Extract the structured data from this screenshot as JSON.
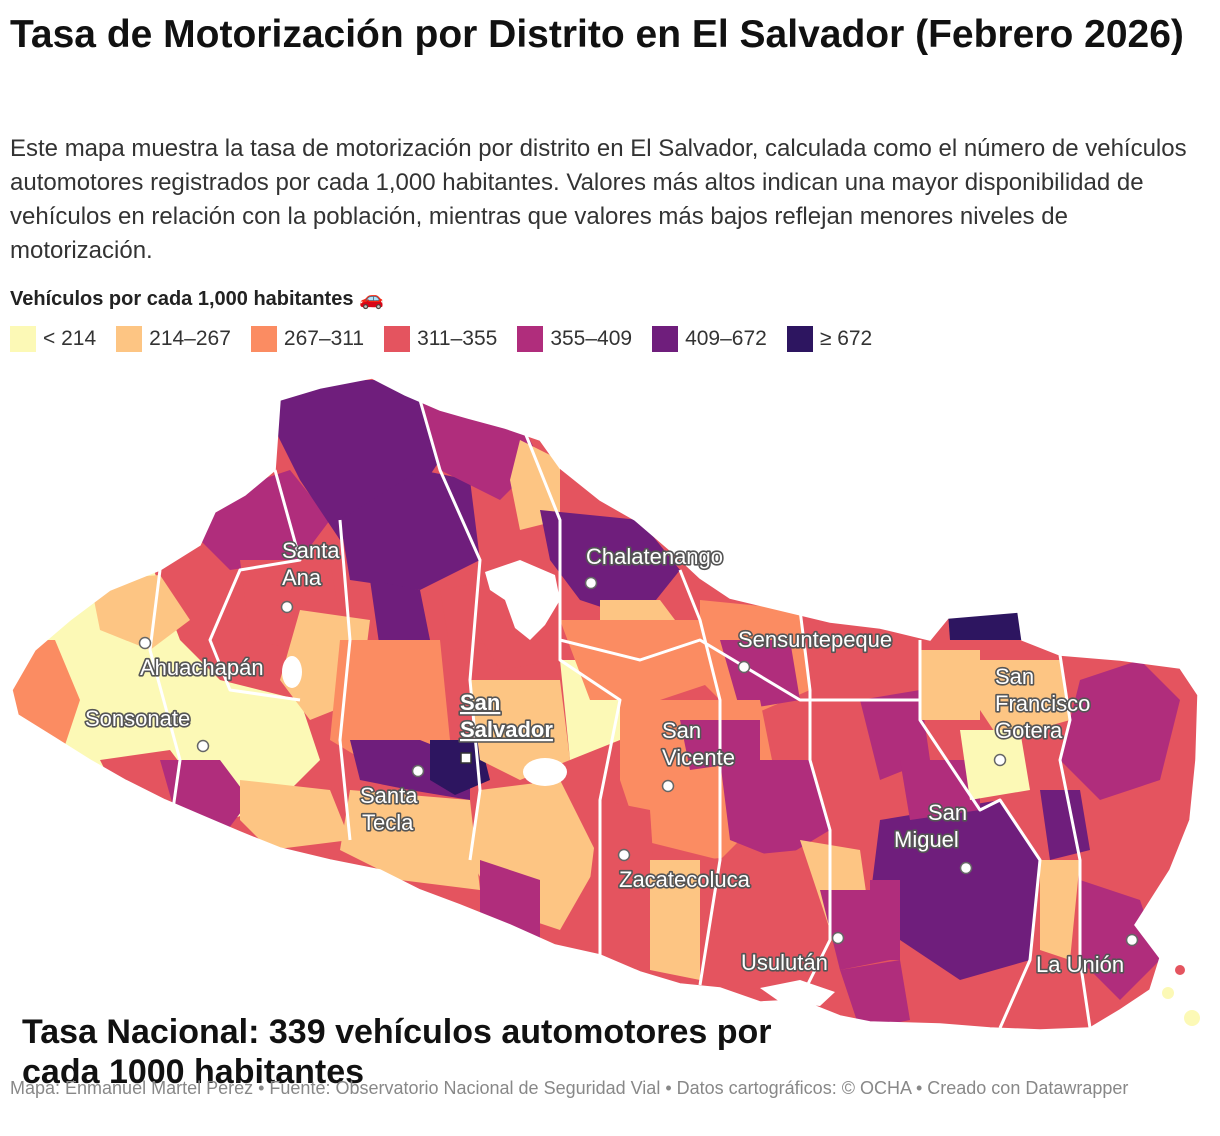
{
  "header": {
    "title": "Tasa de Motorización por Distrito en El Salvador (Febrero 2026)",
    "description": "Este mapa muestra la tasa de motorización por distrito en El Salvador, calculada como el número de vehículos automotores registrados por cada 1,000 habitantes. Valores más altos indican una mayor disponibilidad de vehículos en relación con la población, mientras que valores más bajos reflejan menores niveles de motorización."
  },
  "legend": {
    "title": "Vehículos por cada 1,000 habitantes 🚗",
    "items": [
      {
        "label": "< 214",
        "color": "#fcf9b6"
      },
      {
        "label": "214–267",
        "color": "#fdc583"
      },
      {
        "label": "267–311",
        "color": "#fb8c62"
      },
      {
        "label": "311–355",
        "color": "#e4545f"
      },
      {
        "label": "355–409",
        "color": "#b02d7c"
      },
      {
        "label": "409–672",
        "color": "#6f1e7c"
      },
      {
        "label": "≥ 672",
        "color": "#2d1560"
      }
    ]
  },
  "map": {
    "cities": [
      {
        "name": "Santa Ana",
        "lines": [
          "Santa",
          "Ana"
        ]
      },
      {
        "name": "Ahuachapán",
        "lines": [
          "Ahuachapán"
        ]
      },
      {
        "name": "Sonsonate",
        "lines": [
          "Sonsonate"
        ]
      },
      {
        "name": "Santa Tecla",
        "lines": [
          "Santa",
          "Tecla"
        ]
      },
      {
        "name": "San Salvador",
        "lines": [
          "San",
          "Salvador"
        ],
        "capital": true
      },
      {
        "name": "Chalatenango",
        "lines": [
          "Chalatenango"
        ]
      },
      {
        "name": "Sensuntepeque",
        "lines": [
          "Sensuntepeque"
        ]
      },
      {
        "name": "San Vicente",
        "lines": [
          "San",
          "Vicente"
        ]
      },
      {
        "name": "Zacatecoluca",
        "lines": [
          "Zacatecoluca"
        ]
      },
      {
        "name": "Usulután",
        "lines": [
          "Usulután"
        ]
      },
      {
        "name": "San Miguel",
        "lines": [
          "San",
          "Miguel"
        ]
      },
      {
        "name": "San Francisco Gotera",
        "lines": [
          "San",
          "Francisco",
          "Gotera"
        ]
      },
      {
        "name": "La Unión",
        "lines": [
          "La Unión"
        ]
      }
    ]
  },
  "annotation": "Tasa Nacional: 339 vehículos automotores por cada 1000 habitantes",
  "footer": "Mapa: Enmanuel Martel Perez • Fuente: Observatorio Nacional de Seguridad Vial • Datos cartográficos: © OCHA  • Creado con Datawrapper"
}
